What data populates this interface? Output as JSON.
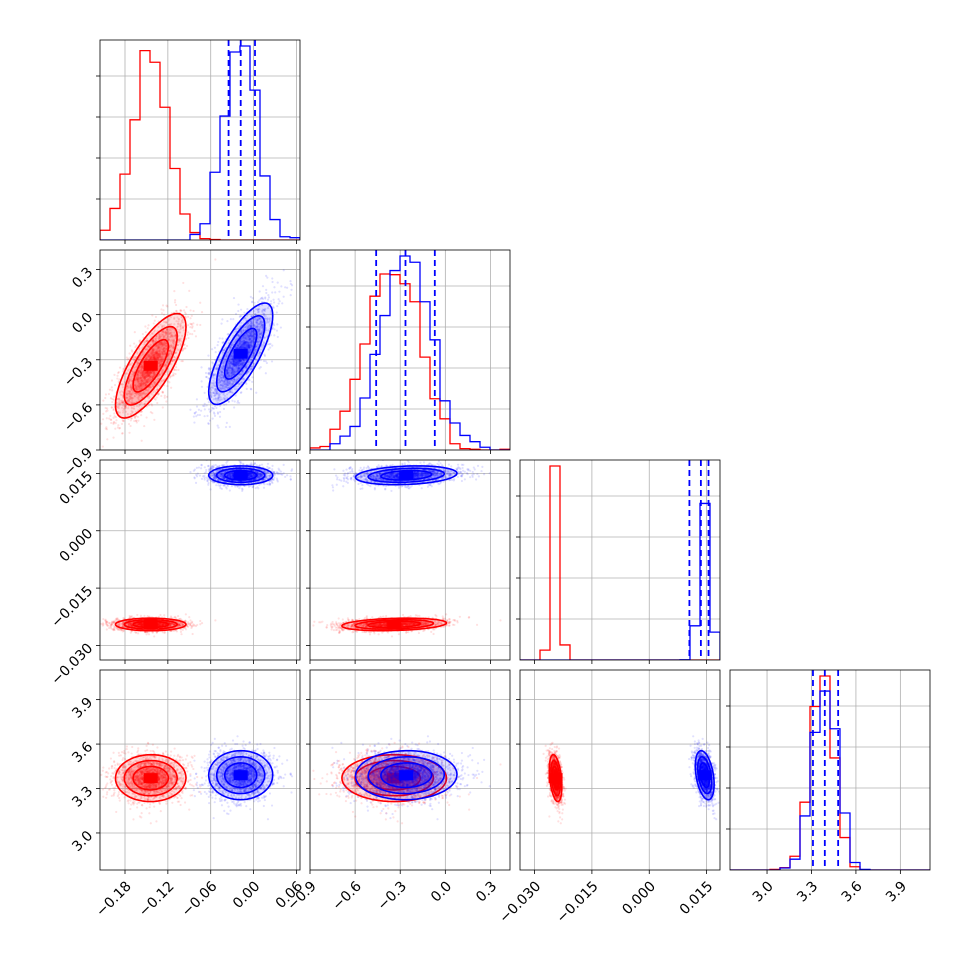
{
  "chart_data": {
    "type": "corner",
    "parameters": [
      {
        "ticks": [
          -0.18,
          -0.12,
          -0.06,
          0.0,
          0.06
        ],
        "tick_labels": [
          "−0.18",
          "−0.12",
          "−0.06",
          "0.00",
          "0.06"
        ],
        "range": [
          -0.215,
          0.065
        ]
      },
      {
        "ticks": [
          -0.9,
          -0.6,
          -0.3,
          0.0,
          0.3
        ],
        "tick_labels": [
          "−0.9",
          "−0.6",
          "−0.3",
          "0.0",
          "0.3"
        ],
        "range": [
          -0.9,
          0.43
        ]
      },
      {
        "ticks": [
          -0.03,
          -0.015,
          0.0,
          0.015
        ],
        "tick_labels": [
          "−0.030",
          "−0.015",
          "0.000",
          "0.015"
        ],
        "range": [
          -0.0338,
          0.0185
        ]
      },
      {
        "ticks": [
          3.0,
          3.3,
          3.6,
          3.9
        ],
        "tick_labels": [
          "3.0",
          "3.3",
          "3.6",
          "3.9"
        ],
        "range": [
          2.75,
          4.1
        ]
      }
    ],
    "series": [
      {
        "color": "#ff0000",
        "mean": [
          -0.144,
          -0.34,
          -0.0245,
          3.37
        ],
        "std": [
          0.025,
          0.17,
          0.0008,
          0.08
        ]
      },
      {
        "color": "#0000ff",
        "mean": [
          -0.018,
          -0.26,
          0.0145,
          3.39
        ],
        "std": [
          0.022,
          0.17,
          0.0012,
          0.08
        ]
      }
    ],
    "quantile_lines": {
      "color": "#0000ff",
      "values": [
        [
          -0.035,
          -0.018,
          0.002
        ],
        [
          -0.46,
          -0.265,
          -0.07
        ],
        [
          0.0105,
          0.0135,
          0.0155
        ],
        [
          3.31,
          3.39,
          3.48
        ]
      ]
    },
    "grid": true
  }
}
